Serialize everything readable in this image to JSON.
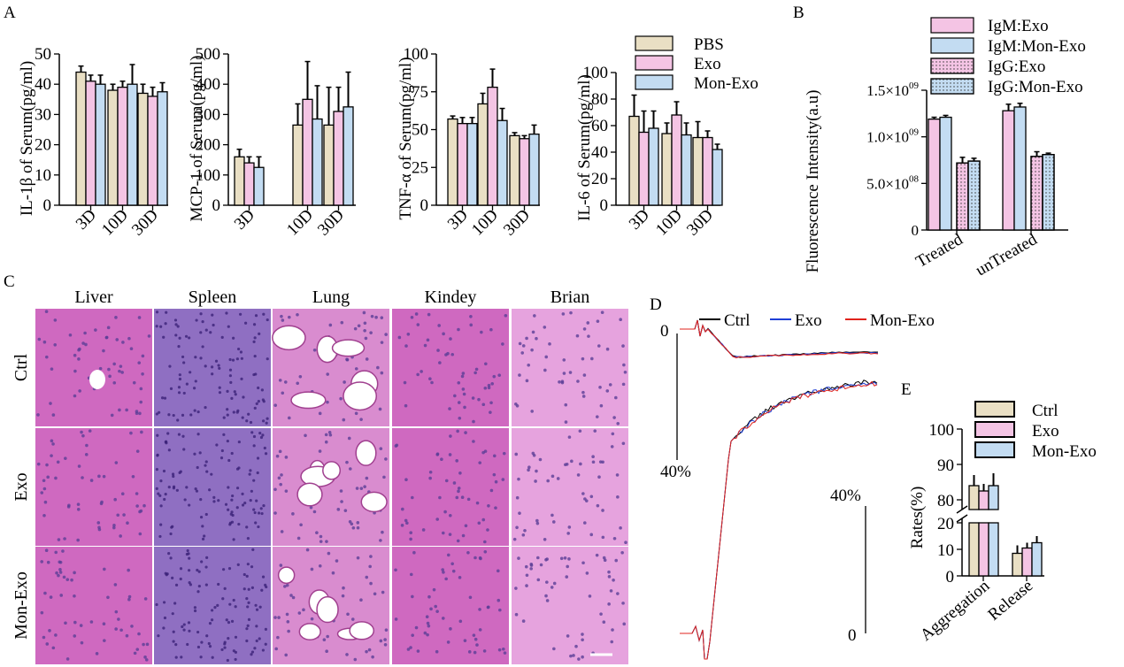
{
  "colors": {
    "pbs": "#e9dfc4",
    "exo": "#f4c4e4",
    "mon_exo": "#c3dcf2",
    "ctrl_trace": "#000000",
    "exo_trace": "#1f3fd6",
    "mon_exo_trace": "#e0231c",
    "he_pink": "#d562ba",
    "he_purple": "#5b3f96"
  },
  "panel_labels": {
    "a": "A",
    "b": "B",
    "c": "C",
    "d": "D",
    "e": "E"
  },
  "legend_a": [
    "PBS",
    "Exo",
    "Mon-Exo"
  ],
  "chart_data": [
    {
      "id": "il1b",
      "type": "bar",
      "ylabel": "IL-1β of Serum(pg/ml)",
      "ylim": [
        0,
        50
      ],
      "yticks": [
        "0",
        "10",
        "20",
        "30",
        "40",
        "50"
      ],
      "ytick_values": [
        0,
        10,
        20,
        30,
        40,
        50
      ],
      "categories": [
        "3D",
        "10D",
        "30D"
      ],
      "series": [
        {
          "name": "PBS",
          "values": [
            44,
            38,
            37
          ],
          "errors": [
            2,
            2,
            3
          ]
        },
        {
          "name": "Exo",
          "values": [
            41,
            39,
            36
          ],
          "errors": [
            2,
            2,
            3
          ]
        },
        {
          "name": "Mon-Exo",
          "values": [
            40,
            40,
            37.5
          ],
          "errors": [
            3,
            6.5,
            3
          ]
        }
      ]
    },
    {
      "id": "mcp1",
      "type": "bar",
      "ylabel": "MCP-1 of Serum(pg/ml)",
      "ylim": [
        0,
        500
      ],
      "yticks": [
        "0",
        "100",
        "200",
        "300",
        "400",
        "500"
      ],
      "ytick_values": [
        0,
        100,
        200,
        300,
        400,
        500
      ],
      "categories": [
        "3D",
        "10D",
        "30D"
      ],
      "series": [
        {
          "name": "PBS",
          "values": [
            160,
            265,
            265
          ],
          "errors": [
            25,
            70,
            125
          ]
        },
        {
          "name": "Exo",
          "values": [
            140,
            350,
            310
          ],
          "errors": [
            20,
            125,
            80
          ]
        },
        {
          "name": "Mon-Exo",
          "values": [
            125,
            285,
            325
          ],
          "errors": [
            35,
            110,
            115
          ]
        }
      ]
    },
    {
      "id": "tnfa",
      "type": "bar",
      "ylabel": "TNF-α of Serum(pg/ml)",
      "ylim": [
        0,
        100
      ],
      "yticks": [
        "0",
        "25",
        "50",
        "75",
        "100"
      ],
      "ytick_values": [
        0,
        25,
        50,
        75,
        100
      ],
      "categories": [
        "3D",
        "10D",
        "30D"
      ],
      "series": [
        {
          "name": "PBS",
          "values": [
            57,
            67,
            46
          ],
          "errors": [
            2,
            7,
            2
          ]
        },
        {
          "name": "Exo",
          "values": [
            54,
            78,
            44
          ],
          "errors": [
            4,
            12,
            2
          ]
        },
        {
          "name": "Mon-Exo",
          "values": [
            54,
            56,
            47
          ],
          "errors": [
            4,
            8,
            6
          ]
        }
      ]
    },
    {
      "id": "il6",
      "type": "bar",
      "ylabel": "IL-6 of Serum(pg/ml)",
      "ylim": [
        0,
        100
      ],
      "yticks": [
        "0",
        "20",
        "40",
        "60",
        "80",
        "100"
      ],
      "ytick_values": [
        0,
        20,
        40,
        60,
        80,
        100
      ],
      "categories": [
        "3D",
        "10D",
        "30D"
      ],
      "series": [
        {
          "name": "PBS",
          "values": [
            67,
            54,
            51
          ],
          "errors": [
            16,
            8,
            12
          ]
        },
        {
          "name": "Exo",
          "values": [
            55,
            68,
            51
          ],
          "errors": [
            16,
            10,
            5
          ]
        },
        {
          "name": "Mon-Exo",
          "values": [
            58,
            53,
            42
          ],
          "errors": [
            13,
            9,
            4
          ]
        }
      ]
    },
    {
      "id": "fluor",
      "type": "bar",
      "ylabel": "Fluorescence Intensity(a.u)",
      "ylim": [
        0,
        1500000000
      ],
      "yticks": [
        "0",
        "5.0×10",
        "1.0×10",
        "1.5×10"
      ],
      "ytick_exp": [
        "",
        "08",
        "09",
        "09"
      ],
      "ytick_values": [
        0,
        500000000,
        1000000000,
        1500000000
      ],
      "categories": [
        "Treated",
        "unTreated"
      ],
      "series": [
        {
          "name": "IgM:Exo",
          "values": [
            1190000000,
            1280000000
          ],
          "errors": [
            20000000,
            70000000
          ]
        },
        {
          "name": "IgM:Mon-Exo",
          "values": [
            1210000000,
            1320000000
          ],
          "errors": [
            20000000,
            40000000
          ]
        },
        {
          "name": "IgG:Exo",
          "values": [
            720000000,
            790000000
          ],
          "errors": [
            60000000,
            50000000
          ]
        },
        {
          "name": "IgG:Mon-Exo",
          "values": [
            740000000,
            810000000
          ],
          "errors": [
            30000000,
            15000000
          ]
        }
      ]
    },
    {
      "id": "platelet",
      "type": "line",
      "legend": [
        "Ctrl",
        "Exo",
        "Mon-Exo"
      ],
      "scale_labels": [
        "0",
        "40%",
        "40%",
        "0"
      ],
      "series": [
        {
          "name": "Ctrl",
          "release_plateau": 0.42,
          "aggregation_plateau": 0.83
        },
        {
          "name": "Exo",
          "release_plateau": 0.5,
          "aggregation_plateau": 0.8
        },
        {
          "name": "Mon-Exo",
          "release_plateau": 0.54,
          "aggregation_plateau": 0.78
        }
      ]
    },
    {
      "id": "rates",
      "type": "bar",
      "ylabel": "Rates(%)",
      "axis_break": [
        20,
        70
      ],
      "yticks": [
        "0",
        "10",
        "20",
        "80",
        "90",
        "100"
      ],
      "ytick_values": [
        0,
        10,
        20,
        80,
        90,
        100
      ],
      "categories": [
        "Aggregation",
        "Release"
      ],
      "legend": [
        "Ctrl",
        "Exo",
        "Mon-Exo"
      ],
      "series": [
        {
          "name": "Ctrl",
          "values": [
            84,
            8.5
          ],
          "errors": [
            3,
            3
          ]
        },
        {
          "name": "Exo",
          "values": [
            82.5,
            10.5
          ],
          "errors": [
            2,
            2
          ]
        },
        {
          "name": "Mon-Exo",
          "values": [
            84,
            12.5
          ],
          "errors": [
            3.5,
            2.5
          ]
        }
      ]
    }
  ],
  "histology": {
    "columns": [
      "Liver",
      "Spleen",
      "Lung",
      "Kindey",
      "Brian"
    ],
    "rows": [
      "Ctrl",
      "Exo",
      "Mon-Exo"
    ]
  }
}
